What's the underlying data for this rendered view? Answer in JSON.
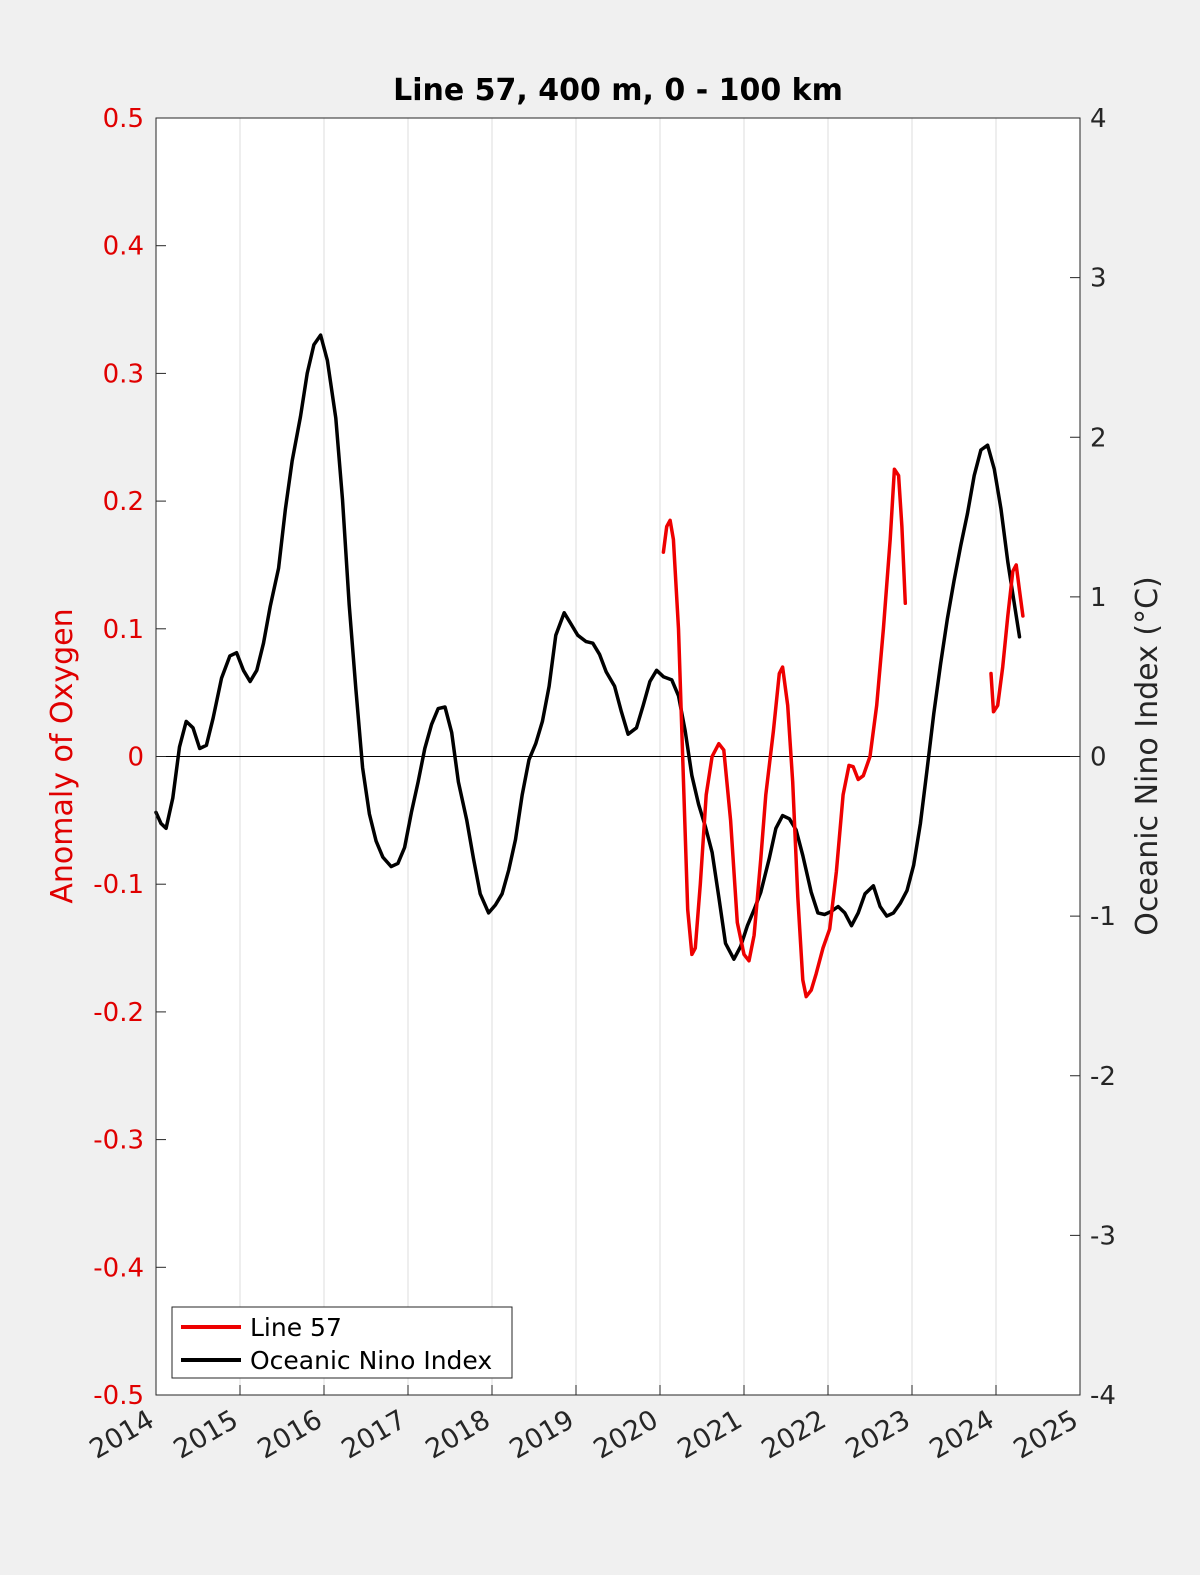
{
  "chart_data": {
    "type": "line",
    "title": "Line 57, 400 m, 0 - 100 km",
    "xlabel": "",
    "ylabel_left": "Anomaly of Oxygen",
    "ylabel_right": "Oceanic Nino Index (°C)",
    "xlim": [
      2014,
      2025
    ],
    "ylim_left": [
      -0.5,
      0.5
    ],
    "ylim_right": [
      -4,
      4
    ],
    "x_ticks": [
      "2014",
      "2015",
      "2016",
      "2017",
      "2018",
      "2019",
      "2020",
      "2021",
      "2022",
      "2023",
      "2024",
      "2025"
    ],
    "y_ticks_left": [
      "-0.5",
      "-0.4",
      "-0.3",
      "-0.2",
      "-0.1",
      "0",
      "0.1",
      "0.2",
      "0.3",
      "0.4",
      "0.5"
    ],
    "y_ticks_right": [
      "-4",
      "-3",
      "-2",
      "-1",
      "0",
      "1",
      "2",
      "3",
      "4"
    ],
    "grid": "vertical",
    "legend_position": "bottom-left",
    "colors": {
      "left_axis": "#e00000",
      "line57": "#ee0000",
      "oni": "#000000"
    },
    "series": [
      {
        "name": "Line 57",
        "axis": "left",
        "segments": [
          [
            [
              2020.04,
              0.16
            ],
            [
              2020.08,
              0.18
            ],
            [
              2020.12,
              0.185
            ],
            [
              2020.16,
              0.17
            ],
            [
              2020.22,
              0.1
            ],
            [
              2020.28,
              -0.02
            ],
            [
              2020.33,
              -0.12
            ],
            [
              2020.38,
              -0.155
            ],
            [
              2020.42,
              -0.15
            ],
            [
              2020.48,
              -0.1
            ],
            [
              2020.55,
              -0.03
            ],
            [
              2020.62,
              0.0
            ],
            [
              2020.7,
              0.01
            ],
            [
              2020.76,
              0.005
            ],
            [
              2020.84,
              -0.05
            ],
            [
              2020.92,
              -0.13
            ],
            [
              2021.0,
              -0.155
            ],
            [
              2021.06,
              -0.16
            ],
            [
              2021.12,
              -0.14
            ],
            [
              2021.2,
              -0.08
            ],
            [
              2021.26,
              -0.03
            ],
            [
              2021.35,
              0.02
            ],
            [
              2021.42,
              0.065
            ],
            [
              2021.46,
              0.07
            ],
            [
              2021.52,
              0.04
            ],
            [
              2021.58,
              -0.02
            ],
            [
              2021.64,
              -0.11
            ],
            [
              2021.7,
              -0.175
            ],
            [
              2021.74,
              -0.188
            ],
            [
              2021.8,
              -0.183
            ],
            [
              2021.86,
              -0.17
            ],
            [
              2021.94,
              -0.15
            ],
            [
              2022.02,
              -0.135
            ],
            [
              2022.1,
              -0.09
            ],
            [
              2022.18,
              -0.03
            ],
            [
              2022.25,
              -0.007
            ],
            [
              2022.3,
              -0.008
            ],
            [
              2022.36,
              -0.018
            ],
            [
              2022.42,
              -0.015
            ],
            [
              2022.5,
              0.0
            ],
            [
              2022.58,
              0.04
            ],
            [
              2022.66,
              0.1
            ],
            [
              2022.74,
              0.17
            ],
            [
              2022.79,
              0.225
            ],
            [
              2022.84,
              0.22
            ],
            [
              2022.88,
              0.18
            ],
            [
              2022.92,
              0.12
            ]
          ],
          [
            [
              2023.94,
              0.065
            ],
            [
              2023.97,
              0.035
            ],
            [
              2024.02,
              0.04
            ],
            [
              2024.08,
              0.07
            ],
            [
              2024.14,
              0.11
            ],
            [
              2024.2,
              0.145
            ],
            [
              2024.24,
              0.15
            ],
            [
              2024.28,
              0.13
            ],
            [
              2024.32,
              0.11
            ]
          ]
        ]
      },
      {
        "name": "Oceanic Nino Index",
        "axis": "right",
        "points": [
          [
            2014.0,
            -0.35
          ],
          [
            2014.06,
            -0.42
          ],
          [
            2014.12,
            -0.45
          ],
          [
            2014.2,
            -0.26
          ],
          [
            2014.28,
            0.06
          ],
          [
            2014.36,
            0.22
          ],
          [
            2014.44,
            0.18
          ],
          [
            2014.52,
            0.05
          ],
          [
            2014.6,
            0.07
          ],
          [
            2014.68,
            0.24
          ],
          [
            2014.78,
            0.49
          ],
          [
            2014.88,
            0.63
          ],
          [
            2014.96,
            0.65
          ],
          [
            2015.04,
            0.54
          ],
          [
            2015.12,
            0.47
          ],
          [
            2015.2,
            0.54
          ],
          [
            2015.28,
            0.71
          ],
          [
            2015.36,
            0.94
          ],
          [
            2015.46,
            1.18
          ],
          [
            2015.54,
            1.55
          ],
          [
            2015.62,
            1.85
          ],
          [
            2015.72,
            2.13
          ],
          [
            2015.8,
            2.4
          ],
          [
            2015.88,
            2.58
          ],
          [
            2015.96,
            2.64
          ],
          [
            2016.04,
            2.48
          ],
          [
            2016.14,
            2.12
          ],
          [
            2016.22,
            1.61
          ],
          [
            2016.3,
            0.95
          ],
          [
            2016.38,
            0.42
          ],
          [
            2016.46,
            -0.07
          ],
          [
            2016.54,
            -0.36
          ],
          [
            2016.62,
            -0.53
          ],
          [
            2016.7,
            -0.63
          ],
          [
            2016.8,
            -0.69
          ],
          [
            2016.88,
            -0.67
          ],
          [
            2016.96,
            -0.57
          ],
          [
            2017.04,
            -0.35
          ],
          [
            2017.12,
            -0.16
          ],
          [
            2017.2,
            0.05
          ],
          [
            2017.28,
            0.2
          ],
          [
            2017.36,
            0.3
          ],
          [
            2017.44,
            0.31
          ],
          [
            2017.52,
            0.15
          ],
          [
            2017.6,
            -0.16
          ],
          [
            2017.7,
            -0.4
          ],
          [
            2017.78,
            -0.64
          ],
          [
            2017.86,
            -0.86
          ],
          [
            2017.96,
            -0.98
          ],
          [
            2018.04,
            -0.93
          ],
          [
            2018.12,
            -0.86
          ],
          [
            2018.2,
            -0.71
          ],
          [
            2018.28,
            -0.52
          ],
          [
            2018.36,
            -0.24
          ],
          [
            2018.44,
            -0.02
          ],
          [
            2018.52,
            0.08
          ],
          [
            2018.6,
            0.22
          ],
          [
            2018.68,
            0.44
          ],
          [
            2018.76,
            0.76
          ],
          [
            2018.86,
            0.9
          ],
          [
            2018.94,
            0.83
          ],
          [
            2019.02,
            0.76
          ],
          [
            2019.12,
            0.72
          ],
          [
            2019.2,
            0.71
          ],
          [
            2019.28,
            0.64
          ],
          [
            2019.36,
            0.53
          ],
          [
            2019.46,
            0.44
          ],
          [
            2019.54,
            0.28
          ],
          [
            2019.62,
            0.14
          ],
          [
            2019.72,
            0.18
          ],
          [
            2019.8,
            0.32
          ],
          [
            2019.88,
            0.47
          ],
          [
            2019.96,
            0.54
          ],
          [
            2020.04,
            0.5
          ],
          [
            2020.14,
            0.48
          ],
          [
            2020.22,
            0.38
          ],
          [
            2020.3,
            0.16
          ],
          [
            2020.38,
            -0.12
          ],
          [
            2020.46,
            -0.3
          ],
          [
            2020.54,
            -0.44
          ],
          [
            2020.62,
            -0.6
          ],
          [
            2020.7,
            -0.88
          ],
          [
            2020.78,
            -1.17
          ],
          [
            2020.88,
            -1.27
          ],
          [
            2020.96,
            -1.19
          ],
          [
            2021.04,
            -1.06
          ],
          [
            2021.12,
            -0.96
          ],
          [
            2021.2,
            -0.85
          ],
          [
            2021.3,
            -0.64
          ],
          [
            2021.38,
            -0.45
          ],
          [
            2021.46,
            -0.37
          ],
          [
            2021.54,
            -0.39
          ],
          [
            2021.62,
            -0.46
          ],
          [
            2021.7,
            -0.62
          ],
          [
            2021.8,
            -0.85
          ],
          [
            2021.88,
            -0.98
          ],
          [
            2021.96,
            -0.99
          ],
          [
            2022.04,
            -0.97
          ],
          [
            2022.12,
            -0.94
          ],
          [
            2022.2,
            -0.98
          ],
          [
            2022.28,
            -1.06
          ],
          [
            2022.36,
            -0.98
          ],
          [
            2022.44,
            -0.86
          ],
          [
            2022.54,
            -0.81
          ],
          [
            2022.62,
            -0.94
          ],
          [
            2022.7,
            -1.0
          ],
          [
            2022.78,
            -0.98
          ],
          [
            2022.86,
            -0.92
          ],
          [
            2022.94,
            -0.84
          ],
          [
            2023.02,
            -0.68
          ],
          [
            2023.1,
            -0.42
          ],
          [
            2023.18,
            -0.08
          ],
          [
            2023.26,
            0.27
          ],
          [
            2023.34,
            0.58
          ],
          [
            2023.42,
            0.86
          ],
          [
            2023.5,
            1.1
          ],
          [
            2023.58,
            1.32
          ],
          [
            2023.66,
            1.52
          ],
          [
            2023.74,
            1.76
          ],
          [
            2023.82,
            1.92
          ],
          [
            2023.9,
            1.95
          ],
          [
            2023.98,
            1.8
          ],
          [
            2024.06,
            1.55
          ],
          [
            2024.14,
            1.22
          ],
          [
            2024.22,
            0.95
          ],
          [
            2024.28,
            0.75
          ]
        ]
      }
    ]
  }
}
